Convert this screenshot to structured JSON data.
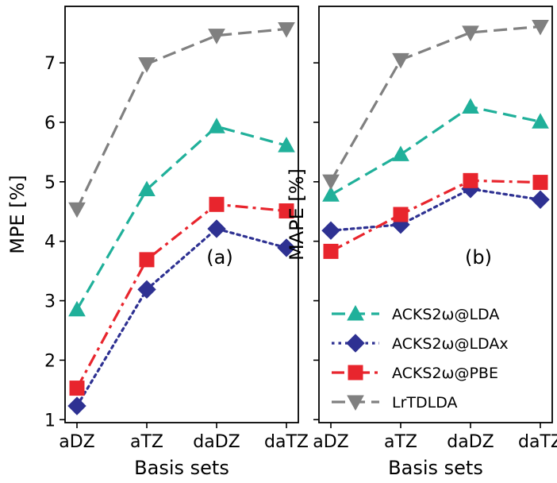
{
  "chart_data": [
    {
      "type": "line",
      "panel_label": "(a)",
      "ylabel": "MPE [%]",
      "xlabel": "Basis sets",
      "categories": [
        "aDZ",
        "aTZ",
        "daDZ",
        "daTZ"
      ],
      "ylim": [
        0.95,
        7.95
      ],
      "yticks": [
        1,
        2,
        3,
        4,
        5,
        6,
        7
      ],
      "ytick_labels": [
        "1",
        "2",
        "3",
        "4",
        "5",
        "6",
        "7"
      ],
      "grid": false,
      "series": [
        {
          "name": "ACKS2ω@LDA",
          "values": [
            2.85,
            4.87,
            5.93,
            5.61
          ],
          "color": "#20b09a",
          "marker": "triangle-up",
          "dash": "dashed"
        },
        {
          "name": "ACKS2ω@LDAx",
          "values": [
            1.23,
            3.19,
            4.21,
            3.89
          ],
          "color": "#2e3192",
          "marker": "diamond",
          "dash": "dotted"
        },
        {
          "name": "ACKS2ω@PBE",
          "values": [
            1.53,
            3.69,
            4.62,
            4.51
          ],
          "color": "#e8252d",
          "marker": "square",
          "dash": "dashdot"
        },
        {
          "name": "LrTDLDA",
          "values": [
            4.54,
            6.98,
            7.46,
            7.57
          ],
          "color": "#808080",
          "marker": "triangle-down",
          "dash": "dashed"
        }
      ]
    },
    {
      "type": "line",
      "panel_label": "(b)",
      "ylabel": "MAPE [%]",
      "xlabel": "Basis sets",
      "categories": [
        "aDZ",
        "aTZ",
        "daDZ",
        "daTZ"
      ],
      "ylim": [
        0.95,
        7.95
      ],
      "yticks": [
        1,
        2,
        3,
        4,
        5,
        6,
        7
      ],
      "ytick_labels": [
        "",
        "",
        "",
        "",
        "",
        "",
        ""
      ],
      "grid": false,
      "legend": "lower-right",
      "series": [
        {
          "name": "ACKS2ω@LDA",
          "values": [
            4.78,
            5.46,
            6.26,
            6.01
          ],
          "color": "#20b09a",
          "marker": "triangle-up",
          "dash": "dashed"
        },
        {
          "name": "ACKS2ω@LDAx",
          "values": [
            4.18,
            4.28,
            4.88,
            4.7
          ],
          "color": "#2e3192",
          "marker": "diamond",
          "dash": "dotted"
        },
        {
          "name": "ACKS2ω@PBE",
          "values": [
            3.83,
            4.45,
            5.02,
            4.99
          ],
          "color": "#e8252d",
          "marker": "square",
          "dash": "dashdot"
        },
        {
          "name": "LrTDLDA",
          "values": [
            5.01,
            7.05,
            7.51,
            7.61
          ],
          "color": "#808080",
          "marker": "triangle-down",
          "dash": "dashed"
        }
      ]
    }
  ]
}
